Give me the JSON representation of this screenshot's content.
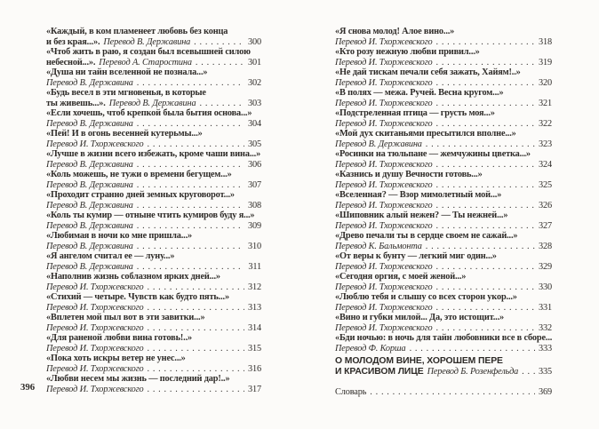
{
  "book": {
    "left_page": {
      "folio": "396",
      "entries": [
        {
          "line1": "«Каждый, в ком пламенеет любовь без конца",
          "line2_title": "и без края...».",
          "translator": "Перевод В. Державина",
          "page": "300"
        },
        {
          "line1": "«Чтоб жить в раю, я создан был всевышней силою",
          "line2_title": "небесной...».",
          "translator": "Перевод А. Старостина",
          "page": "301"
        },
        {
          "line1": "«Душа ни тайн вселенной не познала...»",
          "line2_title": "",
          "translator": "Перевод В. Державина",
          "page": "302"
        },
        {
          "line1": "«Будь весел в эти мгновенья, в которые",
          "line2_title": "ты живешь...».",
          "translator": "Перевод В. Державина",
          "page": "303"
        },
        {
          "line1": "«Если хочешь, чтоб крепкой была бытия основа...»",
          "line2_title": "",
          "translator": "Перевод В. Державина",
          "page": "304"
        },
        {
          "line1": "«Пей! И в огонь весенней кутерьмы...»",
          "line2_title": "",
          "translator": "Перевод И. Тхоржевского",
          "page": "305"
        },
        {
          "line1": "«Лучше в жизни всего избежать, кроме чаши вина...»",
          "line2_title": "",
          "translator": "Перевод В. Державина",
          "page": "306"
        },
        {
          "line1": "«Коль можешь, не тужи о времени бегущем...»",
          "line2_title": "",
          "translator": "Перевод В. Державина",
          "page": "307"
        },
        {
          "line1": "«Проходит странно дней земных круговорот...»",
          "line2_title": "",
          "translator": "Перевод В. Державина",
          "page": "308"
        },
        {
          "line1": "«Коль ты кумир — отныне чтить кумиров буду я...»",
          "line2_title": "",
          "translator": "Перевод В. Державина",
          "page": "309"
        },
        {
          "line1": "«Любимая в ночи ко мне пришла...»",
          "line2_title": "",
          "translator": "Перевод В. Державина",
          "page": "310"
        },
        {
          "line1": "«Я ангелом считал ее — луну...»",
          "line2_title": "",
          "translator": "Перевод В. Державина",
          "page": "311"
        },
        {
          "line1": "«Наполнив жизнь соблазном ярких дней...»",
          "line2_title": "",
          "translator": "Перевод И. Тхоржевского",
          "page": "312"
        },
        {
          "line1": "«Стихий — четыре. Чувств как будто пять...»",
          "line2_title": "",
          "translator": "Перевод И. Тхоржевского",
          "page": "313"
        },
        {
          "line1": "«Вплетен мой пыл вот в эти завитки...»",
          "line2_title": "",
          "translator": "Перевод И. Тхоржевского",
          "page": "314"
        },
        {
          "line1": "«Для раненой любви вина готовь!..»",
          "line2_title": "",
          "translator": "Перевод И. Тхоржевского",
          "page": "315"
        },
        {
          "line1": "«Пока хоть искры ветер не унес...»",
          "line2_title": "",
          "translator": "Перевод И. Тхоржевского",
          "page": "316"
        },
        {
          "line1": "«Любви несем мы жизнь — последний дар!..»",
          "line2_title": "",
          "translator": "Перевод И. Тхоржевского",
          "page": "317"
        }
      ]
    },
    "right_page": {
      "entries": [
        {
          "line1": "«Я снова молод! Алое вино...»",
          "line2_title": "",
          "translator": "Перевод И. Тхоржевского",
          "page": "318"
        },
        {
          "line1": "«Кто розу нежную любви привил...»",
          "line2_title": "",
          "translator": "Перевод И. Тхоржевского",
          "page": "319"
        },
        {
          "line1": "«Не дай тискам печали себя зажать, Хайям!..»",
          "line2_title": "",
          "translator": "Перевод И. Тхоржевского",
          "page": "320"
        },
        {
          "line1": "«В полях — межа. Ручей. Весна кругом...»",
          "line2_title": "",
          "translator": "Перевод И. Тхоржевского",
          "page": "321"
        },
        {
          "line1": "«Подстреленная птица — грусть моя...»",
          "line2_title": "",
          "translator": "Перевод И. Тхоржевского",
          "page": "322"
        },
        {
          "line1": "«Мой дух скитаньями пресытился вполне...»",
          "line2_title": "",
          "translator": "Перевод В. Державина",
          "page": "323"
        },
        {
          "line1": "«Росинки на тюльпане — жемчужины цветка...»",
          "line2_title": "",
          "translator": "Перевод И. Тхоржевского",
          "page": "324"
        },
        {
          "line1": "«Казнись и душу Вечности готовь...»",
          "line2_title": "",
          "translator": "Перевод И. Тхоржевского",
          "page": "325"
        },
        {
          "line1": "«Вселенная? — Взор мимолетный мой...»",
          "line2_title": "",
          "translator": "Перевод И. Тхоржевского",
          "page": "326"
        },
        {
          "line1": "«Шиповник алый нежен? — Ты нежней...»",
          "line2_title": "",
          "translator": "Перевод И. Тхоржевского",
          "page": "327"
        },
        {
          "line1": "«Древо печали ты в сердце своем не сажай...»",
          "line2_title": "",
          "translator": "Перевод К. Бальмонта",
          "page": "328"
        },
        {
          "line1": "«От веры к бунту — легкий миг один...»",
          "line2_title": "",
          "translator": "Перевод И. Тхоржевского",
          "page": "329"
        },
        {
          "line1": "«Сегодня оргия, с моей женой...»",
          "line2_title": "",
          "translator": "Перевод И. Тхоржевского",
          "page": "330"
        },
        {
          "line1": "«Люблю тебя и слышу со всех сторон укор...»",
          "line2_title": "",
          "translator": "Перевод И. Тхоржевского",
          "page": "331"
        },
        {
          "line1": "«Вино и губки милой... Да, это истощит...»",
          "line2_title": "",
          "translator": "Перевод И. Тхоржевского",
          "page": "332"
        },
        {
          "line1": "«Бди ночью: в ночь для тайн любовники все в сборе...»",
          "line2_title": "",
          "translator": "Перевод Ф. Корша",
          "page": "333"
        }
      ],
      "section": {
        "heading_line1": "О МОЛОДОМ ВИНЕ, ХОРОШЕМ ПЕРЕ",
        "heading_line2": "И КРАСИВОМ ЛИЦЕ",
        "translator": "Перевод Б. Розенфельда",
        "page": "335"
      },
      "glossary": {
        "label": "Словарь",
        "page": "369"
      }
    }
  }
}
